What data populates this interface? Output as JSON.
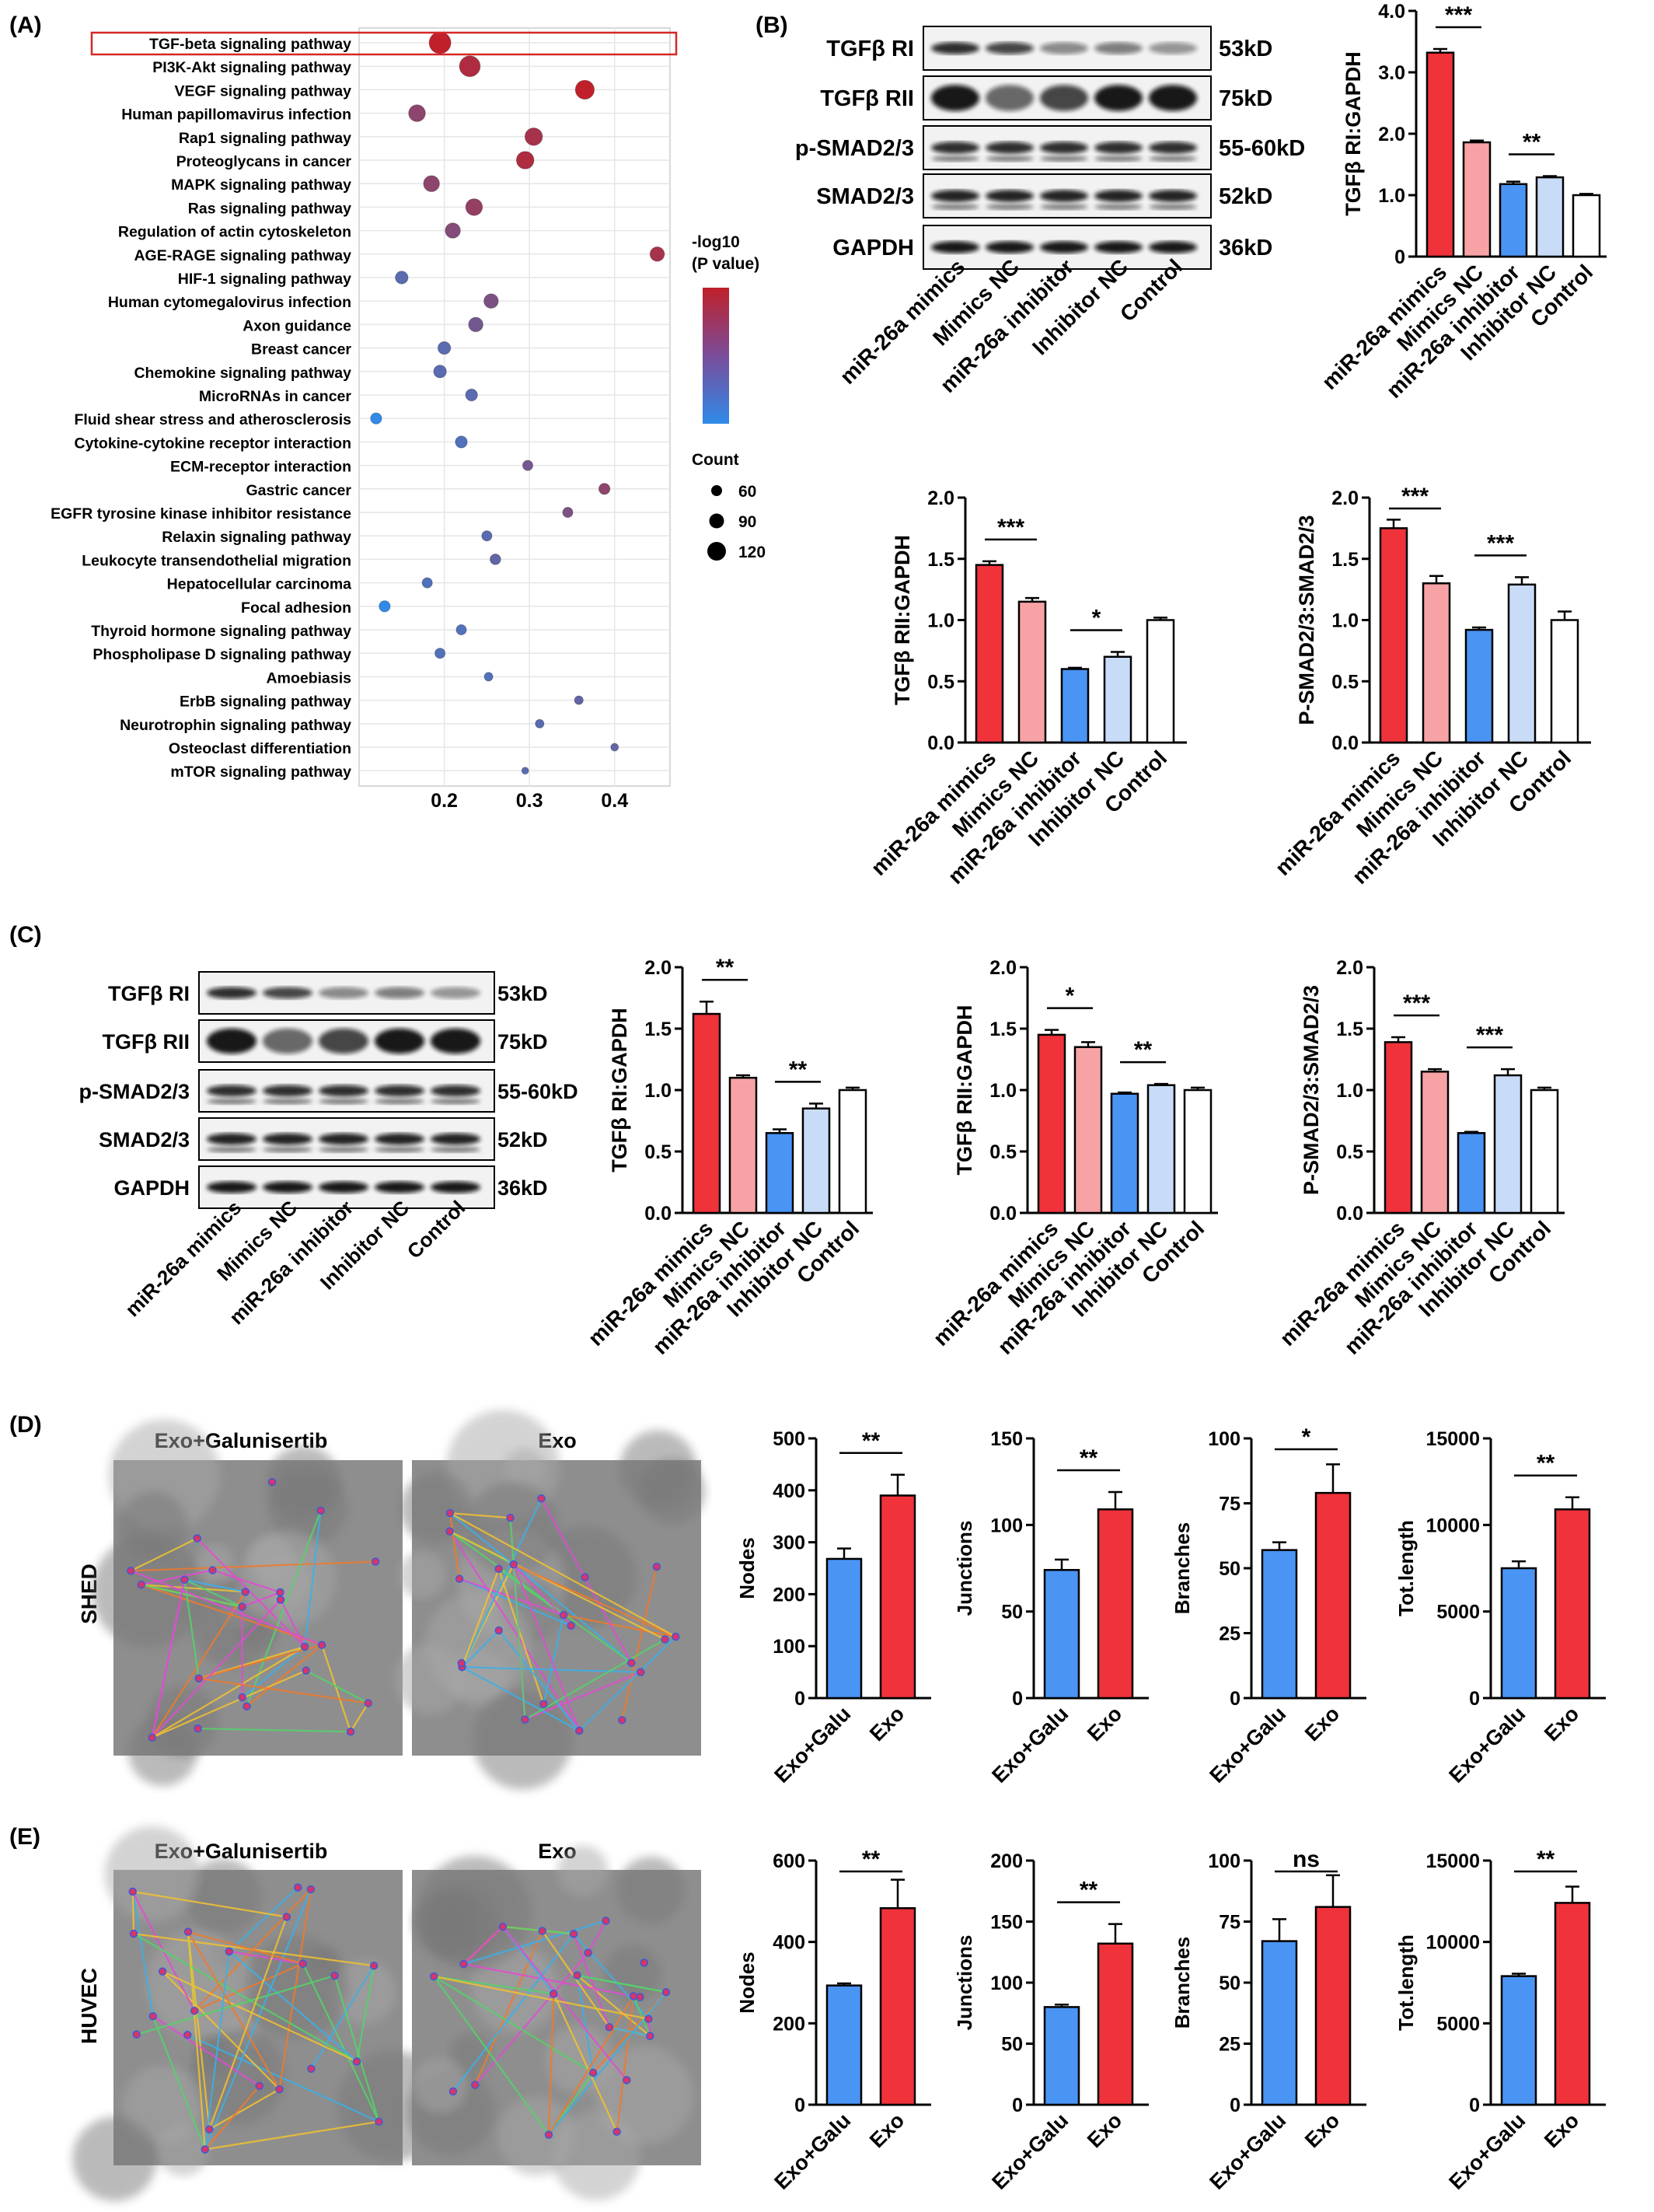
{
  "panel_labels": {
    "A": "(A)",
    "B": "(B)",
    "C": "(C)",
    "D": "(D)",
    "E": "(E)"
  },
  "colors": {
    "mimics": "#f0323a",
    "mimics_nc": "#f7a3a6",
    "inhibitor": "#4a94f4",
    "inhibitor_nc": "#c8dcf8",
    "control": "#ffffff",
    "highlight_box": "#d62728",
    "pval_high": "#c0202a",
    "pval_low": "#2f8ae8"
  },
  "panel_A": {
    "legend_title_line1": "-log10",
    "legend_title_line2": "(P value)",
    "count_title": "Count",
    "count_labels": [
      "60",
      "90",
      "120"
    ],
    "highlighted_term": "TGF-beta signaling pathway"
  },
  "western_blot": {
    "bands": [
      "TGFβ RI",
      "TGFβ RII",
      "p-SMAD2/3",
      "SMAD2/3",
      "GAPDH"
    ],
    "sizes": [
      "53kD",
      "75kD",
      "55-60kD",
      "52kD",
      "36kD"
    ],
    "lanes": [
      "miR-26a mimics",
      "Mimics NC",
      "miR-26a inhibitor",
      "Inhibitor NC",
      "Control"
    ]
  },
  "panel_D": {
    "title_left": "Exo+Galunisertib",
    "title_right": "Exo",
    "row_label": "SHED"
  },
  "panel_E": {
    "title_left": "Exo+Galunisertib",
    "title_right": "Exo",
    "row_label": "HUVEC"
  },
  "chart_data": [
    {
      "id": "A-kegg-dotplot",
      "type": "scatter",
      "terms": [
        "TGF-beta signaling pathway",
        "PI3K-Akt signaling pathway",
        "VEGF signaling pathway",
        "Human papillomavirus infection",
        "Rap1 signaling pathway",
        "Proteoglycans in cancer",
        "MAPK signaling pathway",
        "Ras signaling pathway",
        "Regulation of actin cytoskeleton",
        "AGE-RAGE signaling pathway",
        "HIF-1 signaling pathway",
        "Human cytomegalovirus infection",
        "Axon guidance",
        "Breast cancer",
        "Chemokine signaling pathway",
        "MicroRNAs in cancer",
        "Fluid shear stress and atherosclerosis",
        "Cytokine-cytokine receptor interaction",
        "ECM-receptor interaction",
        "Gastric cancer",
        "EGFR tyrosine kinase inhibitor resistance",
        "Relaxin signaling pathway",
        "Leukocyte transendothelial migration",
        "Hepatocellular carcinoma",
        "Focal adhesion",
        "Thyroid hormone signaling pathway",
        "Phospholipase D signaling pathway",
        "Amoebiasis",
        "ErbB signaling pathway",
        "Neurotrophin signaling pathway",
        "Osteoclast differentiation",
        "mTOR signaling pathway"
      ],
      "x": [
        0.195,
        0.23,
        0.365,
        0.168,
        0.305,
        0.295,
        0.185,
        0.235,
        0.21,
        0.45,
        0.15,
        0.255,
        0.237,
        0.2,
        0.195,
        0.232,
        0.12,
        0.22,
        0.298,
        0.388,
        0.345,
        0.25,
        0.26,
        0.18,
        0.13,
        0.22,
        0.195,
        0.252,
        0.358,
        0.312,
        0.4,
        0.295
      ],
      "count": [
        125,
        120,
        108,
        95,
        100,
        100,
        90,
        95,
        85,
        80,
        70,
        80,
        80,
        70,
        70,
        65,
        60,
        65,
        55,
        60,
        55,
        55,
        58,
        55,
        60,
        55,
        55,
        45,
        45,
        45,
        40,
        35
      ],
      "neglog10p": [
        9.5,
        8.5,
        9.5,
        6.5,
        8,
        8.5,
        6.5,
        7,
        6,
        8,
        3.5,
        5.5,
        5,
        3.5,
        3.5,
        3.5,
        1,
        3,
        5,
        6.5,
        5.5,
        3.5,
        4,
        3,
        1,
        3,
        3,
        3,
        4,
        3.5,
        4,
        3.5
      ],
      "xticks": [
        "0.2",
        "0.3",
        "0.4"
      ]
    },
    {
      "id": "B-1",
      "type": "bar",
      "ylabel": "TGFβ RI:GAPDH",
      "ylim": [
        0,
        4.0
      ],
      "yticks": [
        "0",
        "1.0",
        "2.0",
        "3.0",
        "4.0"
      ],
      "categories": [
        "miR-26a mimics",
        "Mimics NC",
        "miR-26a inhibitor",
        "Inhibitor NC",
        "Control"
      ],
      "values": [
        3.32,
        1.86,
        1.18,
        1.29,
        1.0
      ],
      "errors": [
        0.06,
        0.03,
        0.04,
        0.02,
        0.02
      ],
      "sig": [
        {
          "from": 0,
          "to": 1,
          "label": "***"
        },
        {
          "from": 2,
          "to": 3,
          "label": "**"
        }
      ]
    },
    {
      "id": "B-2",
      "type": "bar",
      "ylabel": "TGFβ RII:GAPDH",
      "ylim": [
        0,
        2.0
      ],
      "yticks": [
        "0.0",
        "0.5",
        "1.0",
        "1.5",
        "2.0"
      ],
      "categories": [
        "miR-26a mimics",
        "Mimics NC",
        "miR-26a inhibitor",
        "Inhibitor NC",
        "Control"
      ],
      "values": [
        1.45,
        1.15,
        0.6,
        0.7,
        1.0
      ],
      "errors": [
        0.03,
        0.03,
        0.01,
        0.04,
        0.02
      ],
      "sig": [
        {
          "from": 0,
          "to": 1,
          "label": "***"
        },
        {
          "from": 2,
          "to": 3,
          "label": "*"
        }
      ]
    },
    {
      "id": "B-3",
      "type": "bar",
      "ylabel": "P-SMAD2/3:SMAD2/3",
      "ylim": [
        0,
        2.0
      ],
      "yticks": [
        "0.0",
        "0.5",
        "1.0",
        "1.5",
        "2.0"
      ],
      "categories": [
        "miR-26a mimics",
        "Mimics NC",
        "miR-26a inhibitor",
        "Inhibitor NC",
        "Control"
      ],
      "values": [
        1.75,
        1.3,
        0.92,
        1.29,
        1.0
      ],
      "errors": [
        0.07,
        0.06,
        0.02,
        0.06,
        0.07
      ],
      "sig": [
        {
          "from": 0,
          "to": 1,
          "label": "***"
        },
        {
          "from": 2,
          "to": 3,
          "label": "***"
        }
      ]
    },
    {
      "id": "C-1",
      "type": "bar",
      "ylabel": "TGFβ RI:GAPDH",
      "ylim": [
        0,
        2.0
      ],
      "yticks": [
        "0.0",
        "0.5",
        "1.0",
        "1.5",
        "2.0"
      ],
      "categories": [
        "miR-26a mimics",
        "Mimics NC",
        "miR-26a inhibitor",
        "Inhibitor NC",
        "Control"
      ],
      "values": [
        1.62,
        1.1,
        0.65,
        0.85,
        1.0
      ],
      "errors": [
        0.1,
        0.02,
        0.03,
        0.04,
        0.02
      ],
      "sig": [
        {
          "from": 0,
          "to": 1,
          "label": "**"
        },
        {
          "from": 2,
          "to": 3,
          "label": "**"
        }
      ]
    },
    {
      "id": "C-2",
      "type": "bar",
      "ylabel": "TGFβ RII:GAPDH",
      "ylim": [
        0,
        2.0
      ],
      "yticks": [
        "0.0",
        "0.5",
        "1.0",
        "1.5",
        "2.0"
      ],
      "categories": [
        "miR-26a mimics",
        "Mimics NC",
        "miR-26a inhibitor",
        "Inhibitor NC",
        "Control"
      ],
      "values": [
        1.45,
        1.35,
        0.97,
        1.04,
        1.0
      ],
      "errors": [
        0.04,
        0.04,
        0.01,
        0.01,
        0.02
      ],
      "sig": [
        {
          "from": 0,
          "to": 1,
          "label": "*"
        },
        {
          "from": 2,
          "to": 3,
          "label": "**"
        }
      ]
    },
    {
      "id": "C-3",
      "type": "bar",
      "ylabel": "P-SMAD2/3:SMAD2/3",
      "ylim": [
        0,
        2.0
      ],
      "yticks": [
        "0.0",
        "0.5",
        "1.0",
        "1.5",
        "2.0"
      ],
      "categories": [
        "miR-26a mimics",
        "Mimics NC",
        "miR-26a inhibitor",
        "Inhibitor NC",
        "Control"
      ],
      "values": [
        1.39,
        1.15,
        0.65,
        1.12,
        1.0
      ],
      "errors": [
        0.04,
        0.02,
        0.01,
        0.05,
        0.02
      ],
      "sig": [
        {
          "from": 0,
          "to": 1,
          "label": "***"
        },
        {
          "from": 2,
          "to": 3,
          "label": "***"
        }
      ]
    },
    {
      "id": "D-1",
      "type": "bar",
      "ylabel": "Nodes",
      "ylim": [
        0,
        500
      ],
      "yticks": [
        "0",
        "100",
        "200",
        "300",
        "400",
        "500"
      ],
      "categories": [
        "Exo+Galu",
        "Exo"
      ],
      "values": [
        268,
        390
      ],
      "errors": [
        20,
        40
      ],
      "sig": [
        {
          "from": 0,
          "to": 1,
          "label": "**"
        }
      ]
    },
    {
      "id": "D-2",
      "type": "bar",
      "ylabel": "Junctions",
      "ylim": [
        0,
        150
      ],
      "yticks": [
        "0",
        "50",
        "100",
        "150"
      ],
      "categories": [
        "Exo+Galu",
        "Exo"
      ],
      "values": [
        74,
        109
      ],
      "errors": [
        6,
        10
      ],
      "sig": [
        {
          "from": 0,
          "to": 1,
          "label": "**"
        }
      ]
    },
    {
      "id": "D-3",
      "type": "bar",
      "ylabel": "Branches",
      "ylim": [
        0,
        100
      ],
      "yticks": [
        "0",
        "25",
        "50",
        "75",
        "100"
      ],
      "categories": [
        "Exo+Galu",
        "Exo"
      ],
      "values": [
        57,
        79
      ],
      "errors": [
        3,
        11
      ],
      "sig": [
        {
          "from": 0,
          "to": 1,
          "label": "*"
        }
      ]
    },
    {
      "id": "D-4",
      "type": "bar",
      "ylabel": "Tot.length",
      "ylim": [
        0,
        15000
      ],
      "yticks": [
        "0",
        "5000",
        "10000",
        "15000"
      ],
      "categories": [
        "Exo+Galu",
        "Exo"
      ],
      "values": [
        7500,
        10900
      ],
      "errors": [
        400,
        700
      ],
      "sig": [
        {
          "from": 0,
          "to": 1,
          "label": "**"
        }
      ]
    },
    {
      "id": "E-1",
      "type": "bar",
      "ylabel": "Nodes",
      "ylim": [
        0,
        600
      ],
      "yticks": [
        "0",
        "200",
        "400",
        "600"
      ],
      "categories": [
        "Exo+Galu",
        "Exo"
      ],
      "values": [
        293,
        483
      ],
      "errors": [
        5,
        70
      ],
      "sig": [
        {
          "from": 0,
          "to": 1,
          "label": "**"
        }
      ]
    },
    {
      "id": "E-2",
      "type": "bar",
      "ylabel": "Junctions",
      "ylim": [
        0,
        200
      ],
      "yticks": [
        "0",
        "50",
        "100",
        "150",
        "200"
      ],
      "categories": [
        "Exo+Galu",
        "Exo"
      ],
      "values": [
        80,
        132
      ],
      "errors": [
        2,
        16
      ],
      "sig": [
        {
          "from": 0,
          "to": 1,
          "label": "**"
        }
      ]
    },
    {
      "id": "E-3",
      "type": "bar",
      "ylabel": "Branches",
      "ylim": [
        0,
        100
      ],
      "yticks": [
        "0",
        "25",
        "50",
        "75",
        "100"
      ],
      "categories": [
        "Exo+Galu",
        "Exo"
      ],
      "values": [
        67,
        81
      ],
      "errors": [
        9,
        13
      ],
      "sig": [
        {
          "from": 0,
          "to": 1,
          "label": "ns"
        }
      ]
    },
    {
      "id": "E-4",
      "type": "bar",
      "ylabel": "Tot.length",
      "ylim": [
        0,
        15000
      ],
      "yticks": [
        "0",
        "5000",
        "10000",
        "15000"
      ],
      "categories": [
        "Exo+Galu",
        "Exo"
      ],
      "values": [
        7900,
        12400
      ],
      "errors": [
        150,
        1000
      ],
      "sig": [
        {
          "from": 0,
          "to": 1,
          "label": "**"
        }
      ]
    }
  ]
}
